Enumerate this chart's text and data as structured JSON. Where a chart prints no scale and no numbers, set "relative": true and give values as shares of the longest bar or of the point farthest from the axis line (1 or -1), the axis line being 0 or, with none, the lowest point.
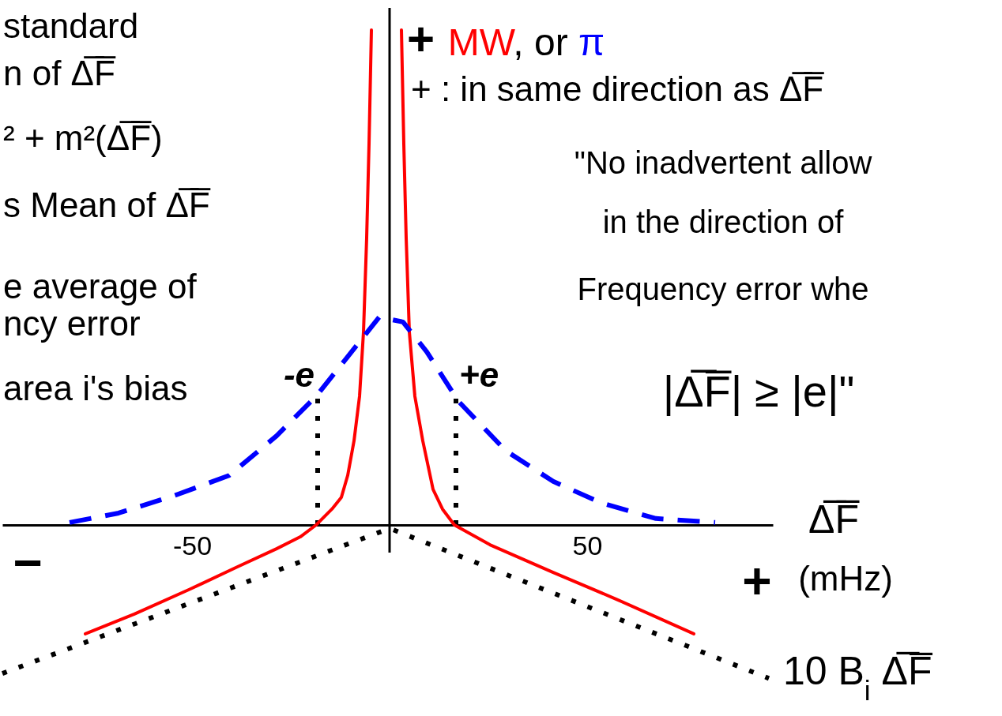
{
  "chart_data": {
    "type": "line",
    "relative": true,
    "xlabel": "Δ̅F̅ (mHz)",
    "xlim": [
      -98,
      97
    ],
    "xticks": [
      -50,
      50
    ],
    "legend": "top",
    "legend_title": "+",
    "series": [
      {
        "name": "MW",
        "color": "#ff0000",
        "line_style": "solid",
        "x": [
          -77,
          -64.6,
          -50.6,
          -38.6,
          -28.6,
          -22.6,
          -18.6,
          -14.6,
          -12.2,
          -10.6,
          -9,
          -7.6,
          -6.6,
          -5.8,
          -5.2,
          -4.6,
          0,
          3,
          3.6,
          4.2,
          5,
          6.4,
          8.4,
          11,
          13.4,
          16.4,
          25.4,
          41.4,
          57.4,
          77
        ],
        "values": [
          -0.22,
          -0.18,
          -0.13,
          -0.085,
          -0.048,
          -0.024,
          0,
          0.032,
          0.056,
          0.1,
          0.17,
          0.26,
          0.39,
          0.58,
          0.77,
          1,
          null,
          1,
          0.77,
          0.58,
          0.39,
          0.26,
          0.17,
          0.072,
          0.032,
          0,
          -0.04,
          -0.096,
          -0.15,
          -0.22
        ]
      },
      {
        "name": "π",
        "color": "#0000ff",
        "line_style": "dashed",
        "x": [
          -81,
          -68.6,
          -54.6,
          -40.6,
          -28.6,
          -18.6,
          -10.6,
          -2.6,
          3.4,
          9.4,
          17.4,
          29.4,
          41.4,
          53.4,
          67.4,
          82.4
        ],
        "values": [
          0.005,
          0.024,
          0.059,
          0.1,
          0.18,
          0.26,
          0.34,
          0.42,
          0.41,
          0.35,
          0.25,
          0.15,
          0.088,
          0.045,
          0.013,
          0.005
        ]
      },
      {
        "color": "#000000",
        "line_style": "dotted",
        "x": [
          -98,
          -1,
          1,
          96
        ],
        "values": [
          -0.3,
          -0.01,
          -0.01,
          -0.31
        ]
      }
    ],
    "ref_lines": [
      {
        "axis": "x",
        "value": -18.2,
        "label": "-e",
        "color": "#000000",
        "line_style": "dotted"
      },
      {
        "axis": "x",
        "value": 16.8,
        "label": "+e",
        "color": "#000000",
        "line_style": "dotted"
      }
    ],
    "annotations": [
      ", or ",
      "+ : in same direction as Δ̅F̅",
      "standard",
      "n of Δ̅F̅",
      "² + m²(Δ̅F̅)",
      "s Mean of Δ̅F̅",
      "e average of",
      "ncy error",
      "area i's bias",
      "\"No inadvertent allow",
      "in the direction of",
      "Frequency error whe",
      "|Δ̅F̅| ≥ |e|\"",
      "−",
      "+",
      {
        "text": "10 B$_{i}$ Δ̅F̅",
        "x": 96,
        "y": -0.31
      }
    ]
  }
}
